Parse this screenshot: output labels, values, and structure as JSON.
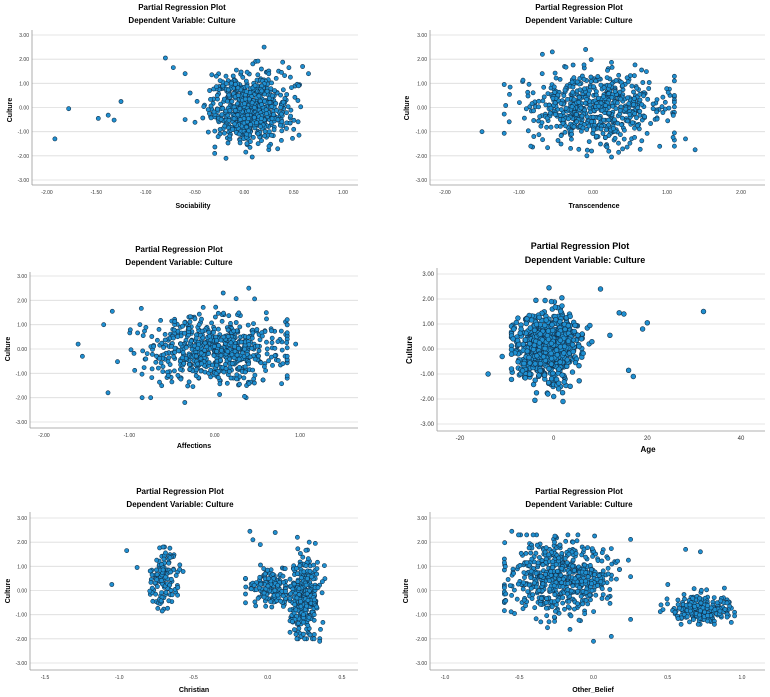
{
  "chart_data": [
    {
      "type": "scatter",
      "title": "Partial Regression Plot",
      "subtitle": "Dependent Variable: Culture",
      "xlabel": "Sociability",
      "ylabel": "Culture",
      "xlim": [
        -2.0,
        1.0
      ],
      "ylim": [
        -3.0,
        3.0
      ],
      "xticks": [
        "-2.00",
        "-1.50",
        "-1.00",
        "-0.50",
        "0.00",
        "0.50",
        "1.00"
      ],
      "yticks": [
        "3.00",
        "2.00",
        "1.00",
        "0.00",
        "-1.00",
        "-2.00",
        "-3.00"
      ],
      "grid": "horizontal",
      "points": [
        [
          -1.92,
          -1.3
        ],
        [
          -1.78,
          -0.05
        ],
        [
          -1.48,
          -0.45
        ],
        [
          -1.38,
          -0.32
        ],
        [
          -1.32,
          -0.52
        ],
        [
          -1.25,
          0.25
        ],
        [
          -0.8,
          2.05
        ],
        [
          -0.72,
          1.65
        ],
        [
          -0.6,
          1.4
        ],
        [
          0.2,
          2.5
        ],
        [
          0.65,
          1.4
        ],
        [
          -0.3,
          -1.9
        ],
        [
          0.08,
          -2.05
        ],
        [
          0.25,
          -1.6
        ],
        [
          -0.55,
          0.6
        ],
        [
          0.55,
          0.9
        ],
        [
          0.5,
          -0.9
        ],
        [
          -0.6,
          -0.5
        ]
      ],
      "cloud": {
        "cx": 0.05,
        "cy": 0.0,
        "sx": 0.2,
        "sy": 0.7,
        "n": 680,
        "xmin": -0.9,
        "xmax": 0.65,
        "ymin": -2.1,
        "ymax": 2.4
      }
    },
    {
      "type": "scatter",
      "title": "Partial Regression Plot",
      "subtitle": "Dependent Variable: Culture",
      "xlabel": "Transcendence",
      "ylabel": "Culture",
      "xlim": [
        -2.0,
        2.0
      ],
      "ylim": [
        -3.0,
        3.0
      ],
      "xticks": [
        "-2.00",
        "-1.00",
        "0.00",
        "1.00",
        "2.00"
      ],
      "yticks": [
        "3.00",
        "2.00",
        "1.00",
        "0.00",
        "-1.00",
        "-2.00",
        "-3.00"
      ],
      "grid": "horizontal",
      "points": [
        [
          -1.5,
          -1.0
        ],
        [
          -1.2,
          0.95
        ],
        [
          1.25,
          -1.3
        ],
        [
          1.38,
          -1.75
        ],
        [
          1.1,
          -1.6
        ],
        [
          -0.55,
          2.3
        ],
        [
          -0.1,
          2.4
        ],
        [
          0.25,
          -2.05
        ],
        [
          1.1,
          1.1
        ],
        [
          -0.8,
          -1.2
        ]
      ],
      "cloud": {
        "cx": 0.05,
        "cy": 0.0,
        "sx": 0.45,
        "sy": 0.75,
        "n": 640,
        "xmin": -1.2,
        "xmax": 1.1,
        "ymin": -2.0,
        "ymax": 2.2
      }
    },
    {
      "type": "scatter",
      "title": "Partial Regression Plot",
      "subtitle": "Dependent Variable: Culture",
      "xlabel": "Affections",
      "ylabel": "Culture",
      "xlim": [
        -2.0,
        1.0
      ],
      "ylim": [
        -3.0,
        3.0
      ],
      "xticks": [
        "-2.00",
        "-1.00",
        "0.00",
        "1.00"
      ],
      "yticks": [
        "3.00",
        "2.00",
        "1.00",
        "0.00",
        "-1.00",
        "-2.00",
        "-3.00"
      ],
      "grid": "horizontal",
      "points": [
        [
          -1.6,
          0.2
        ],
        [
          -1.55,
          -0.3
        ],
        [
          -1.25,
          -1.8
        ],
        [
          -1.2,
          1.55
        ],
        [
          -1.3,
          1.0
        ],
        [
          -0.85,
          -2.0
        ],
        [
          -0.75,
          -2.0
        ],
        [
          0.4,
          2.5
        ],
        [
          0.95,
          0.2
        ],
        [
          -0.35,
          -2.2
        ],
        [
          0.35,
          -1.95
        ],
        [
          0.1,
          2.3
        ],
        [
          0.85,
          -1.1
        ],
        [
          0.8,
          -0.6
        ]
      ],
      "cloud": {
        "cx": 0.0,
        "cy": 0.0,
        "sx": 0.4,
        "sy": 0.7,
        "n": 640,
        "xmin": -1.15,
        "xmax": 0.85,
        "ymin": -2.0,
        "ymax": 2.3
      }
    },
    {
      "type": "scatter",
      "title": "Partial Regression Plot",
      "subtitle": "Dependent Variable: Culture",
      "xlabel": "Age",
      "ylabel": "Culture",
      "xlim": [
        -20,
        40
      ],
      "ylim": [
        -3.0,
        3.0
      ],
      "xticks": [
        "-20",
        "0",
        "20",
        "40"
      ],
      "yticks": [
        "3.00",
        "2.00",
        "1.00",
        "0.00",
        "-1.00",
        "-2.00",
        "-3.00"
      ],
      "grid": "horizontal",
      "points": [
        [
          -14,
          -1.0
        ],
        [
          -11,
          -0.3
        ],
        [
          32,
          1.5
        ],
        [
          20,
          1.05
        ],
        [
          19,
          0.8
        ],
        [
          16,
          -0.85
        ],
        [
          17,
          -1.1
        ],
        [
          10,
          2.4
        ],
        [
          14,
          1.45
        ],
        [
          15,
          1.4
        ],
        [
          12,
          0.55
        ],
        [
          -4,
          -2.05
        ],
        [
          0,
          -1.9
        ],
        [
          2,
          -2.1
        ],
        [
          -1,
          2.45
        ]
      ],
      "cloud": {
        "cx": -1.0,
        "cy": 0.1,
        "sx": 3.5,
        "sy": 0.7,
        "n": 700,
        "xmin": -9,
        "xmax": 13,
        "ymin": -2.0,
        "ymax": 2.3
      }
    },
    {
      "type": "scatter",
      "title": "Partial Regression Plot",
      "subtitle": "Dependent Variable: Culture",
      "xlabel": "Christian",
      "ylabel": "Culture",
      "xlim": [
        -1.5,
        0.5
      ],
      "ylim": [
        -3.0,
        3.0
      ],
      "xticks": [
        "-1.5",
        "-1.0",
        "-0.5",
        "0.0",
        "0.5"
      ],
      "yticks": [
        "3.00",
        "2.00",
        "1.00",
        "0.00",
        "-1.00",
        "-2.00",
        "-3.00"
      ],
      "grid": "horizontal",
      "points": [
        [
          -1.05,
          0.25
        ],
        [
          -0.95,
          1.65
        ],
        [
          -0.88,
          0.95
        ],
        [
          -0.15,
          0.5
        ],
        [
          -0.1,
          2.1
        ],
        [
          0.05,
          2.4
        ],
        [
          -0.05,
          1.9
        ],
        [
          0.32,
          1.95
        ],
        [
          0.35,
          -2.1
        ],
        [
          0.2,
          2.2
        ],
        [
          -0.12,
          2.45
        ]
      ],
      "clusters": [
        {
          "cx": -0.7,
          "cy": 0.55,
          "sx": 0.05,
          "sy": 0.65,
          "n": 120,
          "xmin": -0.82,
          "xmax": -0.57,
          "ymin": -1.5,
          "ymax": 1.8
        },
        {
          "cx": 0.02,
          "cy": 0.05,
          "sx": 0.07,
          "sy": 0.4,
          "n": 150,
          "xmin": -0.15,
          "xmax": 0.12,
          "ymin": -0.8,
          "ymax": 1.1
        },
        {
          "cx": 0.25,
          "cy": -0.3,
          "sx": 0.05,
          "sy": 0.8,
          "n": 330,
          "xmin": 0.15,
          "xmax": 0.42,
          "ymin": -2.0,
          "ymax": 2.0
        }
      ]
    },
    {
      "type": "scatter",
      "title": "Partial Regression Plot",
      "subtitle": "Dependent Variable: Culture",
      "xlabel": "Other_Belief",
      "ylabel": "Culture",
      "xlim": [
        -1.0,
        1.0
      ],
      "ylim": [
        -3.0,
        3.0
      ],
      "xticks": [
        "-1.0",
        "-0.5",
        "0.0",
        "0.5",
        "1.0"
      ],
      "yticks": [
        "3.00",
        "2.00",
        "1.00",
        "0.00",
        "-1.00",
        "-2.00",
        "-3.00"
      ],
      "grid": "horizontal",
      "points": [
        [
          -0.55,
          2.45
        ],
        [
          -0.45,
          2.3
        ],
        [
          -0.6,
          1.15
        ],
        [
          0.0,
          -2.1
        ],
        [
          0.12,
          -1.9
        ],
        [
          0.62,
          1.7
        ],
        [
          0.72,
          1.6
        ],
        [
          0.9,
          -1.1
        ],
        [
          0.95,
          -1.05
        ],
        [
          0.5,
          0.25
        ]
      ],
      "clusters": [
        {
          "cx": -0.22,
          "cy": 0.5,
          "sx": 0.18,
          "sy": 0.75,
          "n": 600,
          "xmin": -0.6,
          "xmax": 0.25,
          "ymin": -1.7,
          "ymax": 2.3
        },
        {
          "cx": 0.72,
          "cy": -0.8,
          "sx": 0.1,
          "sy": 0.3,
          "n": 230,
          "xmin": 0.45,
          "xmax": 0.95,
          "ymin": -1.4,
          "ymax": 0.1
        }
      ]
    }
  ]
}
